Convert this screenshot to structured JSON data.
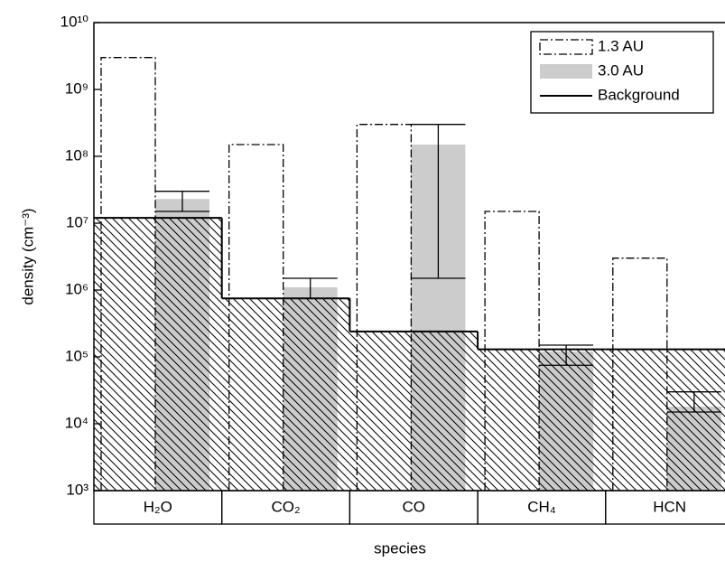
{
  "chart_data": {
    "type": "bar",
    "y_label": "density (cm⁻³)",
    "x_label": "species",
    "categories": [
      "H₂O",
      "CO₂",
      "CO",
      "CH₄",
      "HCN"
    ],
    "log_y": true,
    "ylim": [
      1000,
      10000000000
    ],
    "yticks": [
      {
        "value": 1000,
        "label": "10³"
      },
      {
        "value": 10000,
        "label": "10⁴"
      },
      {
        "value": 100000,
        "label": "10⁵"
      },
      {
        "value": 1000000,
        "label": "10⁶"
      },
      {
        "value": 10000000,
        "label": "10⁷"
      },
      {
        "value": 100000000,
        "label": "10⁸"
      },
      {
        "value": 1000000000,
        "label": "10⁹"
      },
      {
        "value": 10000000000,
        "label": "10¹⁰"
      }
    ],
    "legend": "top-right",
    "series": [
      {
        "name": "1.3 AU",
        "style": "dash-dot",
        "color": "#000000",
        "values": [
          3000000000,
          150000000,
          300000000,
          15000000,
          3000000
        ]
      },
      {
        "name": "3.0 AU",
        "style": "filled",
        "color": "#cccccc",
        "values": [
          23000000,
          1100000,
          150000000,
          120000,
          18000
        ],
        "err_low": [
          15000000,
          750000,
          1500000,
          75000,
          15000
        ],
        "err_high": [
          30000000,
          1500000,
          300000000,
          150000,
          30000
        ]
      },
      {
        "name": "Background",
        "style": "step-hatched",
        "color": "#000000",
        "values": [
          12000000,
          750000,
          240000,
          130000,
          130000
        ]
      }
    ]
  }
}
